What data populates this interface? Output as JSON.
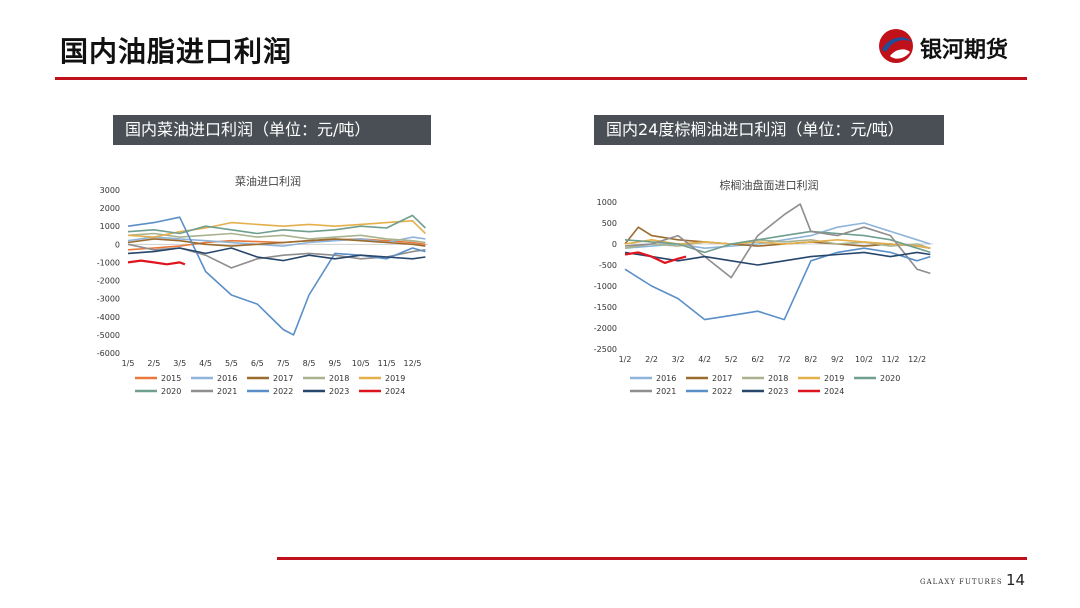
{
  "header": {
    "title": "国内油脂进口利润",
    "brand": "银河期货"
  },
  "footer": {
    "brand": "GALAXY FUTURES",
    "page": "14"
  },
  "panels": [
    {
      "heading": "国内菜油进口利润（单位：元/吨）"
    },
    {
      "heading": "国内24度棕榈油进口利润（单位：元/吨）"
    }
  ],
  "colors": {
    "accent": "#c0101a",
    "2015": "#e8793a",
    "2016": "#8fb4d9",
    "2017": "#9c6b2e",
    "2018": "#a9b38f",
    "2019": "#e3b04b",
    "2020": "#6f9f8e",
    "2021": "#8f8d8d",
    "2022": "#5b8fc7",
    "2023": "#27466b",
    "2024": "#e0141e"
  },
  "chart_data": [
    {
      "type": "line",
      "title": "菜油进口利润",
      "x_ticks": [
        "1/5",
        "2/5",
        "3/5",
        "4/5",
        "5/5",
        "6/5",
        "7/5",
        "8/5",
        "9/5",
        "10/5",
        "11/5",
        "12/5"
      ],
      "y_ticks": [
        "3000",
        "2000",
        "1000",
        "0",
        "-1000",
        "-2000",
        "-3000",
        "-4000",
        "-5000",
        "-6000"
      ],
      "ylim": [
        -6000,
        3000
      ],
      "xlim": [
        0,
        11.6
      ],
      "legend_position": "bottom",
      "series": [
        {
          "name": "2015",
          "values": [
            [
              0,
              -300
            ],
            [
              1,
              -200
            ],
            [
              2,
              -100
            ],
            [
              3,
              100
            ],
            [
              4,
              200
            ],
            [
              5,
              150
            ],
            [
              6,
              100
            ],
            [
              7,
              200
            ],
            [
              8,
              250
            ],
            [
              9,
              300
            ],
            [
              10,
              200
            ],
            [
              11,
              100
            ],
            [
              11.5,
              0
            ]
          ]
        },
        {
          "name": "2016",
          "values": [
            [
              0,
              200
            ],
            [
              1,
              400
            ],
            [
              2,
              300
            ],
            [
              3,
              200
            ],
            [
              4,
              100
            ],
            [
              5,
              0
            ],
            [
              6,
              -100
            ],
            [
              7,
              100
            ],
            [
              8,
              200
            ],
            [
              9,
              300
            ],
            [
              10,
              100
            ],
            [
              11,
              400
            ],
            [
              11.5,
              300
            ]
          ]
        },
        {
          "name": "2017",
          "values": [
            [
              0,
              100
            ],
            [
              1,
              300
            ],
            [
              2,
              200
            ],
            [
              3,
              0
            ],
            [
              4,
              -100
            ],
            [
              5,
              0
            ],
            [
              6,
              100
            ],
            [
              7,
              200
            ],
            [
              8,
              300
            ],
            [
              9,
              200
            ],
            [
              10,
              100
            ],
            [
              11,
              0
            ],
            [
              11.5,
              -100
            ]
          ]
        },
        {
          "name": "2018",
          "values": [
            [
              0,
              500
            ],
            [
              1,
              600
            ],
            [
              2,
              400
            ],
            [
              3,
              500
            ],
            [
              4,
              600
            ],
            [
              5,
              400
            ],
            [
              6,
              500
            ],
            [
              7,
              300
            ],
            [
              8,
              400
            ],
            [
              9,
              500
            ],
            [
              10,
              300
            ],
            [
              11,
              200
            ],
            [
              11.5,
              100
            ]
          ]
        },
        {
          "name": "2019",
          "values": [
            [
              0,
              500
            ],
            [
              1,
              400
            ],
            [
              2,
              700
            ],
            [
              3,
              900
            ],
            [
              4,
              1200
            ],
            [
              5,
              1100
            ],
            [
              6,
              1000
            ],
            [
              7,
              1100
            ],
            [
              8,
              1000
            ],
            [
              9,
              1100
            ],
            [
              10,
              1200
            ],
            [
              11,
              1300
            ],
            [
              11.5,
              600
            ]
          ]
        },
        {
          "name": "2020",
          "values": [
            [
              0,
              700
            ],
            [
              1,
              800
            ],
            [
              2,
              600
            ],
            [
              3,
              1000
            ],
            [
              4,
              800
            ],
            [
              5,
              600
            ],
            [
              6,
              800
            ],
            [
              7,
              700
            ],
            [
              8,
              800
            ],
            [
              9,
              1000
            ],
            [
              10,
              900
            ],
            [
              11,
              1600
            ],
            [
              11.5,
              900
            ]
          ]
        },
        {
          "name": "2021",
          "values": [
            [
              0,
              0
            ],
            [
              1,
              -300
            ],
            [
              2,
              -200
            ],
            [
              3,
              -600
            ],
            [
              4,
              -1300
            ],
            [
              5,
              -800
            ],
            [
              6,
              -600
            ],
            [
              7,
              -500
            ],
            [
              8,
              -600
            ],
            [
              9,
              -800
            ],
            [
              10,
              -700
            ],
            [
              11,
              -400
            ],
            [
              11.5,
              -300
            ]
          ]
        },
        {
          "name": "2022",
          "values": [
            [
              0,
              1000
            ],
            [
              1,
              1200
            ],
            [
              2,
              1500
            ],
            [
              3,
              -1500
            ],
            [
              4,
              -2800
            ],
            [
              5,
              -3300
            ],
            [
              6,
              -4700
            ],
            [
              6.4,
              -5000
            ],
            [
              7,
              -2800
            ],
            [
              8,
              -500
            ],
            [
              9,
              -600
            ],
            [
              10,
              -800
            ],
            [
              11,
              -200
            ],
            [
              11.5,
              -400
            ]
          ]
        },
        {
          "name": "2023",
          "values": [
            [
              0,
              -500
            ],
            [
              1,
              -400
            ],
            [
              2,
              -200
            ],
            [
              3,
              -500
            ],
            [
              4,
              -200
            ],
            [
              5,
              -700
            ],
            [
              6,
              -900
            ],
            [
              7,
              -600
            ],
            [
              8,
              -800
            ],
            [
              9,
              -600
            ],
            [
              10,
              -700
            ],
            [
              11,
              -800
            ],
            [
              11.5,
              -700
            ]
          ]
        },
        {
          "name": "2024",
          "values": [
            [
              0,
              -1000
            ],
            [
              0.5,
              -900
            ],
            [
              1,
              -1000
            ],
            [
              1.5,
              -1100
            ],
            [
              2,
              -1000
            ],
            [
              2.2,
              -1100
            ]
          ]
        }
      ]
    },
    {
      "type": "line",
      "title": "棕榈油盘面进口利润",
      "x_ticks": [
        "1/2",
        "2/2",
        "3/2",
        "4/2",
        "5/2",
        "6/2",
        "7/2",
        "8/2",
        "9/2",
        "10/2",
        "11/2",
        "12/2"
      ],
      "y_ticks": [
        "1000",
        "500",
        "0",
        "-500",
        "-1000",
        "-1500",
        "-2000",
        "-2500"
      ],
      "ylim": [
        -2500,
        1000
      ],
      "xlim": [
        0,
        11.6
      ],
      "legend_position": "bottom",
      "series": [
        {
          "name": "2016",
          "values": [
            [
              0,
              -100
            ],
            [
              1,
              -50
            ],
            [
              2,
              0
            ],
            [
              3,
              -100
            ],
            [
              4,
              -50
            ],
            [
              5,
              0
            ],
            [
              6,
              100
            ],
            [
              7,
              200
            ],
            [
              8,
              400
            ],
            [
              9,
              500
            ],
            [
              10,
              300
            ],
            [
              11,
              100
            ],
            [
              11.5,
              0
            ]
          ]
        },
        {
          "name": "2017",
          "values": [
            [
              0,
              0
            ],
            [
              0.5,
              400
            ],
            [
              1,
              200
            ],
            [
              2,
              100
            ],
            [
              3,
              50
            ],
            [
              4,
              0
            ],
            [
              5,
              -50
            ],
            [
              6,
              0
            ],
            [
              7,
              50
            ],
            [
              8,
              0
            ],
            [
              9,
              -50
            ],
            [
              10,
              0
            ],
            [
              11,
              -50
            ],
            [
              11.5,
              -100
            ]
          ]
        },
        {
          "name": "2018",
          "values": [
            [
              0,
              -100
            ],
            [
              1,
              0
            ],
            [
              2,
              -50
            ],
            [
              3,
              50
            ],
            [
              4,
              0
            ],
            [
              5,
              100
            ],
            [
              6,
              50
            ],
            [
              7,
              100
            ],
            [
              8,
              0
            ],
            [
              9,
              50
            ],
            [
              10,
              -50
            ],
            [
              11,
              0
            ],
            [
              11.5,
              -100
            ]
          ]
        },
        {
          "name": "2019",
          "values": [
            [
              0,
              0
            ],
            [
              1,
              100
            ],
            [
              2,
              0
            ],
            [
              3,
              50
            ],
            [
              4,
              0
            ],
            [
              5,
              50
            ],
            [
              6,
              0
            ],
            [
              7,
              50
            ],
            [
              8,
              100
            ],
            [
              9,
              50
            ],
            [
              10,
              0
            ],
            [
              11,
              -50
            ],
            [
              11.5,
              -100
            ]
          ]
        },
        {
          "name": "2020",
          "values": [
            [
              0,
              100
            ],
            [
              1,
              50
            ],
            [
              2,
              0
            ],
            [
              3,
              -200
            ],
            [
              4,
              0
            ],
            [
              5,
              100
            ],
            [
              6,
              200
            ],
            [
              7,
              300
            ],
            [
              8,
              250
            ],
            [
              9,
              200
            ],
            [
              10,
              100
            ],
            [
              11,
              -100
            ],
            [
              11.5,
              -200
            ]
          ]
        },
        {
          "name": "2021",
          "values": [
            [
              0,
              -50
            ],
            [
              1,
              0
            ],
            [
              2,
              200
            ],
            [
              3,
              -300
            ],
            [
              4,
              -800
            ],
            [
              5,
              200
            ],
            [
              6,
              700
            ],
            [
              6.6,
              950
            ],
            [
              7,
              300
            ],
            [
              8,
              200
            ],
            [
              9,
              400
            ],
            [
              10,
              200
            ],
            [
              11,
              -600
            ],
            [
              11.5,
              -700
            ]
          ]
        },
        {
          "name": "2022",
          "values": [
            [
              0,
              -600
            ],
            [
              1,
              -1000
            ],
            [
              2,
              -1300
            ],
            [
              3,
              -1800
            ],
            [
              4,
              -1700
            ],
            [
              5,
              -1600
            ],
            [
              6,
              -1800
            ],
            [
              7,
              -400
            ],
            [
              8,
              -200
            ],
            [
              9,
              -100
            ],
            [
              10,
              -200
            ],
            [
              11,
              -400
            ],
            [
              11.5,
              -300
            ]
          ]
        },
        {
          "name": "2023",
          "values": [
            [
              0,
              -200
            ],
            [
              1,
              -300
            ],
            [
              2,
              -400
            ],
            [
              3,
              -300
            ],
            [
              4,
              -400
            ],
            [
              5,
              -500
            ],
            [
              6,
              -400
            ],
            [
              7,
              -300
            ],
            [
              8,
              -250
            ],
            [
              9,
              -200
            ],
            [
              10,
              -300
            ],
            [
              11,
              -200
            ],
            [
              11.5,
              -250
            ]
          ]
        },
        {
          "name": "2024",
          "values": [
            [
              0,
              -250
            ],
            [
              0.5,
              -200
            ],
            [
              1,
              -300
            ],
            [
              1.5,
              -450
            ],
            [
              2,
              -350
            ],
            [
              2.3,
              -300
            ]
          ]
        }
      ]
    }
  ]
}
